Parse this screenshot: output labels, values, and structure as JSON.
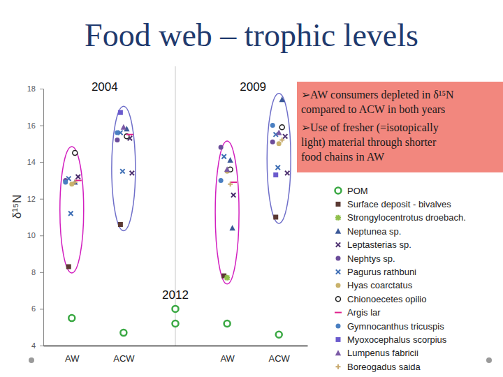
{
  "chart_data": {
    "type": "scatter",
    "title": "Food web – trophic levels",
    "ylabel": "δ¹⁵N",
    "categories": [
      "AW",
      "ACW",
      null,
      "AW",
      "ACW"
    ],
    "ylim": [
      4,
      18
    ],
    "yticks": [
      4,
      6,
      8,
      10,
      12,
      14,
      16,
      18
    ],
    "grid": false,
    "legend": "right",
    "annotations": {
      "years": [
        "2004",
        "2009",
        "2012"
      ],
      "notes": [
        [
          "➢AW consumers depleted  in δ¹⁵N",
          "compared to ACW in both years"
        ],
        [
          "➢Use of fresher (=isotopically",
          "light) material through shorter",
          "food chains  in AW"
        ]
      ]
    },
    "series": [
      {
        "name": "POM",
        "marker": "ring",
        "color": "#3aa843",
        "values": [
          [
            5.5
          ],
          [
            4.7
          ],
          [
            6.0,
            5.2
          ],
          [
            5.2
          ],
          [
            4.6
          ]
        ]
      },
      {
        "name": "Surface deposit - bivalves",
        "marker": "square",
        "color": "#5b3a33",
        "values": [
          [
            8.3
          ],
          [
            10.6
          ],
          null,
          [
            7.8
          ],
          [
            11.0
          ]
        ]
      },
      {
        "name": "Strongylocentrotus droebach.",
        "marker": "asterisk",
        "color": "#8fbf4a",
        "values": [
          null,
          null,
          null,
          [
            7.7
          ],
          null
        ]
      },
      {
        "name": "Neptunea sp.",
        "marker": "triangle",
        "color": "#3b5998",
        "values": [
          [
            12.9
          ],
          [
            15.8
          ],
          null,
          [
            14.1,
            10.4
          ],
          [
            17.4
          ]
        ]
      },
      {
        "name": "Leptasterias sp.",
        "marker": "x",
        "color": "#4b2e6e",
        "values": [
          [
            13.2
          ],
          [
            15.3,
            13.4
          ],
          null,
          [
            12.2
          ],
          [
            15.4,
            13.4
          ]
        ]
      },
      {
        "name": "Nephtys sp.",
        "marker": "circle",
        "color": "#6b4c9a",
        "values": [
          [
            13.0
          ],
          [
            15.2
          ],
          null,
          [
            14.8
          ],
          [
            15.1
          ]
        ]
      },
      {
        "name": "Pagurus rathbuni",
        "marker": "x",
        "color": "#3f6fb5",
        "values": [
          [
            13.1,
            11.2
          ],
          [
            15.6,
            13.5
          ],
          null,
          [
            14.3
          ],
          [
            15.5,
            13.7
          ]
        ]
      },
      {
        "name": "Hyas coarctatus",
        "marker": "circle",
        "color": "#c9b26b",
        "values": [
          [
            12.8
          ],
          null,
          null,
          [
            13.5
          ],
          [
            15.0
          ]
        ]
      },
      {
        "name": "Chionoecetes opilio",
        "marker": "open-circle",
        "color": "#222222",
        "values": [
          [
            14.5
          ],
          [
            15.4
          ],
          null,
          [
            13.6
          ],
          [
            15.9
          ]
        ]
      },
      {
        "name": "Argis lar",
        "marker": "dash",
        "color": "#e0208c",
        "values": [
          [
            13.0
          ],
          [
            15.5
          ],
          null,
          [
            12.9
          ],
          null
        ]
      },
      {
        "name": "Gymnocanthus tricuspis",
        "marker": "circle",
        "color": "#4a7fc1",
        "values": [
          [
            12.9
          ],
          [
            15.6
          ],
          null,
          [
            13.0
          ],
          [
            16.0
          ]
        ]
      },
      {
        "name": "Myoxocephalus scorpius",
        "marker": "square",
        "color": "#6a5acd",
        "values": [
          null,
          [
            16.7
          ],
          null,
          null,
          [
            13.3
          ]
        ]
      },
      {
        "name": "Lumpenus fabricii",
        "marker": "triangle",
        "color": "#7b5aa6",
        "values": [
          null,
          [
            15.9
          ],
          null,
          [
            13.6
          ],
          [
            15.6
          ]
        ]
      },
      {
        "name": "Boreogadus saida",
        "marker": "plus",
        "color": "#c8a96e",
        "values": [
          [
            12.9
          ],
          null,
          null,
          [
            12.8
          ],
          [
            15.2
          ]
        ]
      }
    ]
  }
}
